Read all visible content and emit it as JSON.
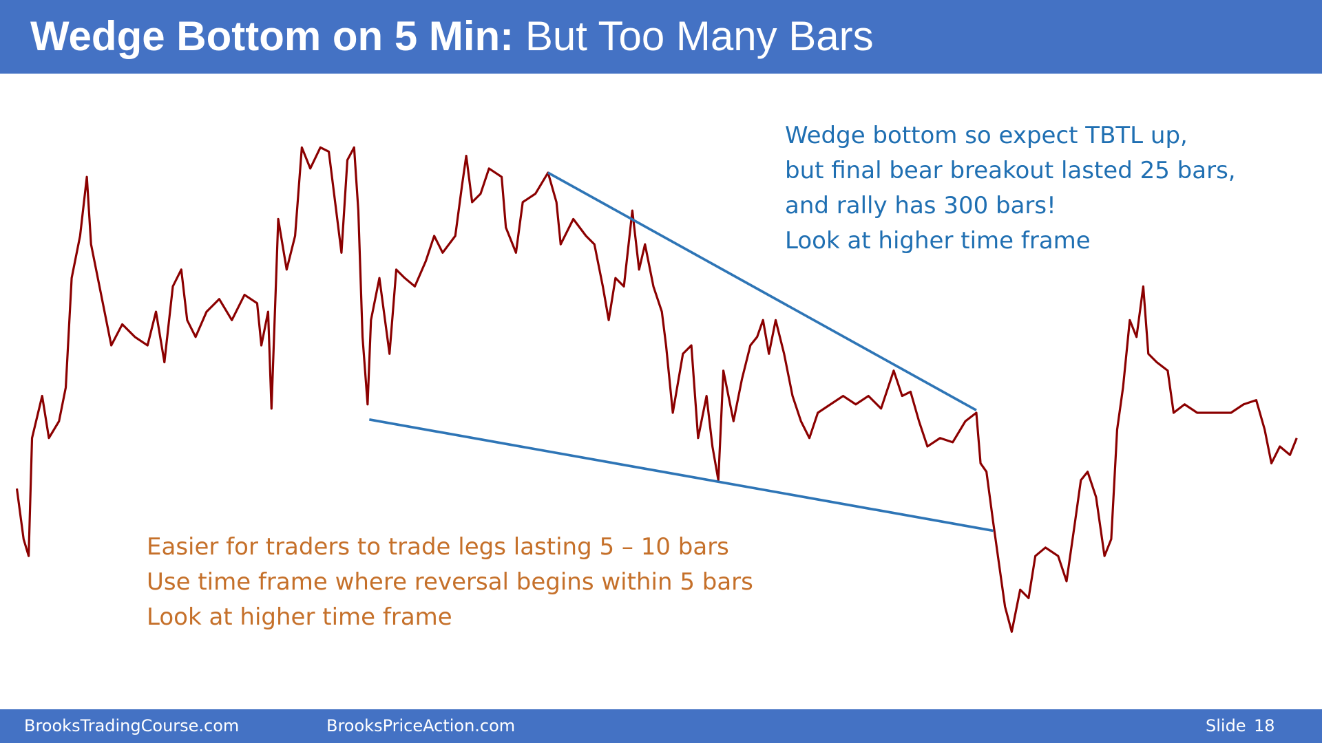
{
  "header": {
    "title_bold": "Wedge Bottom on 5 Min:",
    "title_rest": "But Too Many Bars"
  },
  "notes_blue": [
    "Wedge bottom so expect TBTL up,",
    "but final bear breakout lasted 25 bars,",
    "and rally has 300 bars!",
    "Look at higher time frame"
  ],
  "notes_orange": [
    "Easier for traders to trade legs lasting 5 – 10 bars",
    "Use time frame where reversal begins within 5 bars",
    "Look at higher time frame"
  ],
  "footer": {
    "left": "BrooksTradingCourse.com",
    "middle": "BrooksPriceAction.com",
    "slide_label": "Slide",
    "slide_number": "18"
  }
}
